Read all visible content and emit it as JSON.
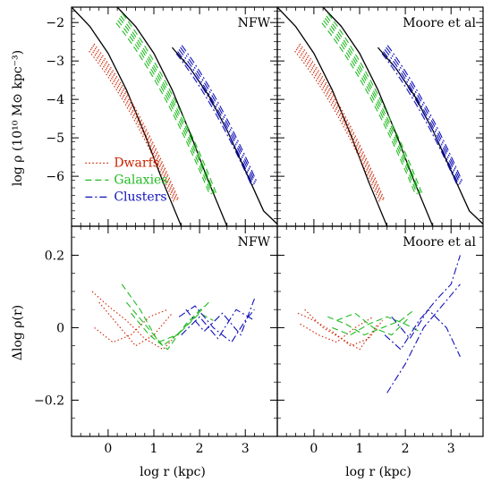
{
  "colors": {
    "dwarfs": "#cc2200",
    "galaxies": "#22bb22",
    "clusters": "#1111bb",
    "model": "#000000",
    "frame": "#000000"
  },
  "labels": {
    "x_axis": "log r (kpc)",
    "y_top_axis": "log ρ (10¹⁰ M⊙ kpc⁻³)",
    "y_bottom_axis": "Δlog ρ(r)"
  },
  "chart_data": [
    {
      "panel": "top-left",
      "type": "line",
      "title": "NFW",
      "xlim": [
        -0.8,
        3.7
      ],
      "ylim": [
        -7.3,
        -1.6
      ],
      "xticks": [
        "0",
        "1",
        "2",
        "3"
      ],
      "yticks": [
        "−2",
        "−3",
        "−4",
        "−5",
        "−6"
      ],
      "legend": {
        "placement": "bottom-left",
        "entries": [
          {
            "label": "Dwarfs",
            "series": "dwarfs",
            "dash": "dotted"
          },
          {
            "label": "Galaxies",
            "series": "galaxies",
            "dash": "dashed"
          },
          {
            "label": "Clusters",
            "series": "clusters",
            "dash": "dash-dot"
          }
        ]
      },
      "model_curves": [
        {
          "x": [
            -0.8,
            -0.4,
            0.0,
            0.4,
            0.8,
            1.2,
            1.6
          ],
          "y": [
            -1.6,
            -2.1,
            -2.8,
            -3.75,
            -4.9,
            -6.15,
            -7.3
          ]
        },
        {
          "x": [
            0.2,
            0.6,
            1.0,
            1.4,
            1.8,
            2.2,
            2.6
          ],
          "y": [
            -1.6,
            -2.1,
            -2.8,
            -3.75,
            -4.9,
            -6.15,
            -7.3
          ]
        },
        {
          "x": [
            1.4,
            1.8,
            2.2,
            2.6,
            3.0,
            3.4,
            3.75
          ],
          "y": [
            -2.65,
            -3.2,
            -3.9,
            -4.8,
            -5.85,
            -6.9,
            -7.3
          ]
        }
      ],
      "series": [
        {
          "name": "Dwarfs",
          "group": "dwarfs",
          "offsets": [
            -0.22,
            -0.12,
            -0.04,
            0.05,
            0.13
          ],
          "x_range": [
            -0.35,
            1.5
          ]
        },
        {
          "name": "Galaxies",
          "group": "galaxies",
          "offsets": [
            -0.25,
            -0.13,
            -0.02,
            0.08,
            0.2
          ],
          "x_range": [
            0.25,
            2.3
          ]
        },
        {
          "name": "Clusters",
          "group": "clusters",
          "offsets": [
            -0.2,
            -0.1,
            0.0,
            0.1,
            0.2
          ],
          "x_range": [
            1.55,
            3.2
          ]
        }
      ]
    },
    {
      "panel": "top-right",
      "type": "line",
      "title": "Moore et al",
      "xlim": [
        -0.8,
        3.7
      ],
      "ylim": [
        -7.3,
        -1.6
      ],
      "xticks": [
        "0",
        "1",
        "2",
        "3"
      ],
      "yticks": [],
      "model_curves": [
        {
          "x": [
            -0.8,
            -0.4,
            0.0,
            0.4,
            0.8,
            1.2,
            1.6
          ],
          "y": [
            -1.6,
            -2.1,
            -2.8,
            -3.75,
            -4.9,
            -6.15,
            -7.3
          ]
        },
        {
          "x": [
            0.2,
            0.6,
            1.0,
            1.4,
            1.8,
            2.2,
            2.6
          ],
          "y": [
            -1.6,
            -2.1,
            -2.8,
            -3.75,
            -4.9,
            -6.15,
            -7.3
          ]
        },
        {
          "x": [
            1.4,
            1.8,
            2.2,
            2.6,
            3.0,
            3.4,
            3.75
          ],
          "y": [
            -2.65,
            -3.2,
            -3.9,
            -4.8,
            -5.85,
            -6.9,
            -7.3
          ]
        }
      ],
      "series": [
        {
          "name": "Dwarfs",
          "group": "dwarfs",
          "offsets": [
            -0.22,
            -0.12,
            -0.04,
            0.05,
            0.13
          ],
          "x_range": [
            -0.35,
            1.5
          ]
        },
        {
          "name": "Galaxies",
          "group": "galaxies",
          "offsets": [
            -0.25,
            -0.13,
            -0.02,
            0.08,
            0.2
          ],
          "x_range": [
            0.25,
            2.3
          ]
        },
        {
          "name": "Clusters",
          "group": "clusters",
          "offsets": [
            -0.2,
            -0.1,
            0.0,
            0.1,
            0.2
          ],
          "x_range": [
            1.55,
            3.2
          ]
        }
      ]
    },
    {
      "panel": "bottom-left",
      "type": "line",
      "title": "NFW",
      "xlim": [
        -0.8,
        3.7
      ],
      "ylim": [
        -0.3,
        0.28
      ],
      "xticks": [
        "0",
        "1",
        "2",
        "3"
      ],
      "yticks": [
        "0.2",
        "0",
        "−0.2"
      ],
      "series": [
        {
          "name": "Dwarfs",
          "group": "dwarfs",
          "lines": [
            {
              "x": [
                -0.35,
                0.0,
                0.4,
                0.8,
                1.2,
                1.5
              ],
              "y": [
                0.1,
                0.06,
                0.02,
                -0.03,
                -0.06,
                -0.02
              ]
            },
            {
              "x": [
                -0.3,
                0.1,
                0.5,
                0.9,
                1.3
              ],
              "y": [
                0.0,
                -0.04,
                -0.02,
                0.03,
                0.05
              ]
            },
            {
              "x": [
                -0.2,
                0.2,
                0.6,
                1.0,
                1.4
              ],
              "y": [
                0.07,
                0.01,
                -0.05,
                -0.02,
                0.04
              ]
            }
          ]
        },
        {
          "name": "Galaxies",
          "group": "galaxies",
          "lines": [
            {
              "x": [
                0.3,
                0.7,
                1.1,
                1.5,
                1.9,
                2.2
              ],
              "y": [
                0.12,
                0.05,
                -0.04,
                -0.02,
                0.03,
                0.07
              ]
            },
            {
              "x": [
                0.4,
                0.8,
                1.2,
                1.6,
                2.0,
                2.3
              ],
              "y": [
                0.07,
                0.01,
                -0.05,
                -0.01,
                0.04,
                0.02
              ]
            },
            {
              "x": [
                0.5,
                0.9,
                1.3,
                1.7,
                2.1
              ],
              "y": [
                0.04,
                -0.02,
                -0.06,
                0.01,
                0.06
              ]
            }
          ]
        },
        {
          "name": "Clusters",
          "group": "clusters",
          "lines": [
            {
              "x": [
                1.55,
                1.9,
                2.3,
                2.7,
                3.0,
                3.2
              ],
              "y": [
                0.03,
                0.06,
                0.0,
                -0.04,
                0.02,
                0.05
              ]
            },
            {
              "x": [
                1.6,
                2.0,
                2.4,
                2.8,
                3.2
              ],
              "y": [
                -0.02,
                0.03,
                -0.03,
                0.05,
                0.02
              ]
            },
            {
              "x": [
                1.7,
                2.1,
                2.5,
                2.9,
                3.2
              ],
              "y": [
                0.05,
                -0.01,
                0.04,
                -0.02,
                0.08
              ]
            }
          ]
        }
      ]
    },
    {
      "panel": "bottom-right",
      "type": "line",
      "title": "Moore et al",
      "xlim": [
        -0.8,
        3.7
      ],
      "ylim": [
        -0.3,
        0.28
      ],
      "xticks": [
        "0",
        "1",
        "2",
        "3"
      ],
      "yticks": [],
      "series": [
        {
          "name": "Dwarfs",
          "group": "dwarfs",
          "lines": [
            {
              "x": [
                -0.35,
                0.0,
                0.4,
                0.8,
                1.2,
                1.5
              ],
              "y": [
                0.04,
                0.02,
                -0.01,
                -0.05,
                -0.03,
                0.02
              ]
            },
            {
              "x": [
                -0.3,
                0.1,
                0.5,
                0.9,
                1.3
              ],
              "y": [
                0.01,
                -0.02,
                -0.04,
                0.0,
                0.03
              ]
            },
            {
              "x": [
                -0.2,
                0.2,
                0.6,
                1.0,
                1.4
              ],
              "y": [
                0.05,
                0.0,
                -0.03,
                -0.06,
                0.01
              ]
            }
          ]
        },
        {
          "name": "Galaxies",
          "group": "galaxies",
          "lines": [
            {
              "x": [
                0.3,
                0.7,
                1.1,
                1.5,
                1.9,
                2.2
              ],
              "y": [
                0.03,
                0.01,
                -0.02,
                0.0,
                0.02,
                0.05
              ]
            },
            {
              "x": [
                0.4,
                0.8,
                1.2,
                1.6,
                2.0,
                2.3
              ],
              "y": [
                0.0,
                -0.02,
                0.01,
                0.03,
                0.01,
                -0.01
              ]
            },
            {
              "x": [
                0.5,
                0.9,
                1.3,
                1.7,
                2.1
              ],
              "y": [
                0.02,
                0.04,
                0.0,
                -0.02,
                0.03
              ]
            }
          ]
        },
        {
          "name": "Clusters",
          "group": "clusters",
          "lines": [
            {
              "x": [
                1.55,
                1.9,
                2.3,
                2.7,
                3.0,
                3.2
              ],
              "y": [
                -0.02,
                -0.06,
                0.02,
                0.08,
                0.12,
                0.2
              ]
            },
            {
              "x": [
                1.6,
                2.0,
                2.4,
                2.8,
                3.2
              ],
              "y": [
                -0.18,
                -0.1,
                0.0,
                0.06,
                0.12
              ]
            },
            {
              "x": [
                1.7,
                2.1,
                2.5,
                2.9,
                3.2
              ],
              "y": [
                0.03,
                -0.03,
                0.05,
                0.0,
                -0.08
              ]
            }
          ]
        }
      ]
    }
  ]
}
